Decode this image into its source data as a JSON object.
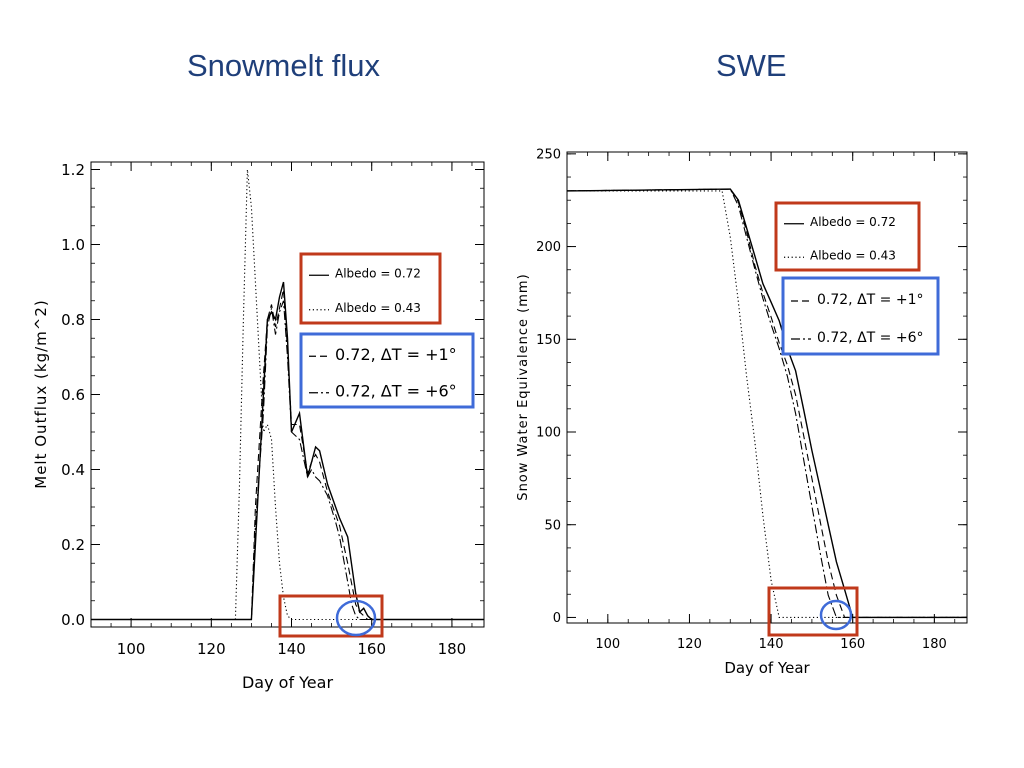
{
  "slide": {
    "left_title": "Snowmelt flux",
    "right_title": "SWE"
  },
  "colors": {
    "title": "#1f3f7a",
    "highlight_red": "#c0391b",
    "highlight_blue": "#3f6bd8",
    "line": "#000000"
  },
  "chart_data": [
    {
      "type": "line",
      "title": "",
      "xlabel": "Day of Year",
      "ylabel": "Melt Outflux (kg/m^2)",
      "xlim": [
        90,
        188
      ],
      "ylim": [
        -0.02,
        1.22
      ],
      "xticks": [
        100,
        120,
        140,
        160,
        180
      ],
      "xtick_labels": [
        "100",
        "120",
        "140",
        "160",
        "180"
      ],
      "yticks": [
        0.0,
        0.2,
        0.4,
        0.6,
        0.8,
        1.0,
        1.2
      ],
      "ytick_labels": [
        "0.0",
        "0.2",
        "0.4",
        "0.6",
        "0.8",
        "1.0",
        "1.2"
      ],
      "grid": false,
      "legend": [
        {
          "label": "Albedo = 0.72",
          "style": "solid",
          "box": "red"
        },
        {
          "label": "Albedo = 0.43",
          "style": "dotted",
          "box": "red"
        },
        {
          "label": "0.72, ΔT = +1°",
          "style": "dashed",
          "box": "blue"
        },
        {
          "label": "0.72, ΔT = +6°",
          "style": "dashdot",
          "box": "blue"
        }
      ],
      "series": [
        {
          "name": "Albedo = 0.72",
          "style": "solid",
          "x": [
            90,
            130,
            131,
            133,
            134,
            135,
            136,
            137,
            138,
            139,
            140,
            142,
            144,
            145,
            146,
            147,
            149,
            151,
            152,
            154,
            156,
            157,
            158,
            159,
            160,
            188
          ],
          "y": [
            0,
            0,
            0.2,
            0.6,
            0.8,
            0.82,
            0.8,
            0.86,
            0.9,
            0.75,
            0.5,
            0.55,
            0.38,
            0.42,
            0.46,
            0.45,
            0.36,
            0.3,
            0.27,
            0.22,
            0.07,
            0.02,
            0.03,
            0.01,
            0,
            0
          ]
        },
        {
          "name": "Albedo = 0.43",
          "style": "dotted",
          "x": [
            90,
            126,
            127,
            128,
            129,
            130,
            131,
            132,
            133,
            134,
            135,
            136,
            137,
            138,
            139,
            140,
            188
          ],
          "y": [
            0,
            0,
            0.35,
            0.8,
            1.2,
            1.1,
            0.9,
            0.7,
            0.5,
            0.52,
            0.48,
            0.3,
            0.15,
            0.06,
            0.01,
            0,
            0
          ]
        },
        {
          "name": "0.72, ΔT = +1°",
          "style": "dashed",
          "x": [
            90,
            130,
            131,
            133,
            134,
            135,
            136,
            137,
            138,
            139,
            140,
            142,
            144,
            145,
            146,
            147,
            149,
            151,
            152,
            154,
            156,
            157,
            158,
            159,
            188
          ],
          "y": [
            0,
            0,
            0.3,
            0.65,
            0.8,
            0.84,
            0.78,
            0.83,
            0.88,
            0.72,
            0.52,
            0.52,
            0.39,
            0.42,
            0.44,
            0.42,
            0.34,
            0.28,
            0.25,
            0.15,
            0.04,
            0.02,
            0.01,
            0,
            0
          ]
        },
        {
          "name": "0.72, ΔT = +6°",
          "style": "dashdot",
          "x": [
            90,
            130,
            131,
            133,
            134,
            135,
            136,
            137,
            138,
            139,
            140,
            142,
            144,
            145,
            146,
            147,
            149,
            151,
            152,
            154,
            155,
            156,
            157,
            188
          ],
          "y": [
            0,
            0,
            0.25,
            0.55,
            0.78,
            0.83,
            0.76,
            0.82,
            0.85,
            0.7,
            0.5,
            0.48,
            0.38,
            0.4,
            0.38,
            0.37,
            0.33,
            0.26,
            0.22,
            0.1,
            0.04,
            0.01,
            0,
            0
          ]
        }
      ]
    },
    {
      "type": "line",
      "title": "",
      "xlabel": "Day of Year",
      "ylabel": "Snow Water Equivalence (mm)",
      "xlim": [
        90,
        188
      ],
      "ylim": [
        -3,
        251
      ],
      "xticks": [
        100,
        120,
        140,
        160,
        180
      ],
      "xtick_labels": [
        "100",
        "120",
        "140",
        "160",
        "180"
      ],
      "yticks": [
        0,
        50,
        100,
        150,
        200,
        250
      ],
      "ytick_labels": [
        "0",
        "50",
        "100",
        "150",
        "200",
        "250"
      ],
      "grid": false,
      "legend": [
        {
          "label": "Albedo = 0.72",
          "style": "solid",
          "box": "red"
        },
        {
          "label": "Albedo = 0.43",
          "style": "dotted",
          "box": "red"
        },
        {
          "label": "0.72, ΔT = +1°",
          "style": "dashed",
          "box": "blue"
        },
        {
          "label": "0.72, ΔT = +6°",
          "style": "dashdot",
          "box": "blue"
        }
      ],
      "series": [
        {
          "name": "Albedo = 0.72",
          "style": "solid",
          "x": [
            90,
            130,
            132,
            134,
            136,
            138,
            140,
            142,
            144,
            146,
            148,
            150,
            152,
            154,
            156,
            158,
            160,
            188
          ],
          "y": [
            230,
            231,
            225,
            210,
            195,
            180,
            170,
            160,
            145,
            133,
            112,
            90,
            70,
            50,
            30,
            15,
            0,
            0
          ]
        },
        {
          "name": "Albedo = 0.43",
          "style": "dotted",
          "x": [
            90,
            128,
            130,
            132,
            134,
            136,
            138,
            140,
            142,
            188
          ],
          "y": [
            230,
            230,
            205,
            170,
            130,
            95,
            55,
            20,
            0,
            0
          ]
        },
        {
          "name": "0.72, ΔT = +1°",
          "style": "dashed",
          "x": [
            90,
            130,
            132,
            134,
            136,
            138,
            140,
            142,
            144,
            146,
            148,
            150,
            152,
            154,
            156,
            158,
            188
          ],
          "y": [
            230,
            231,
            224,
            208,
            190,
            175,
            162,
            148,
            136,
            120,
            98,
            75,
            52,
            30,
            12,
            0,
            0
          ]
        },
        {
          "name": "0.72, ΔT = +6°",
          "style": "dashdot",
          "x": [
            90,
            130,
            132,
            134,
            136,
            138,
            140,
            142,
            144,
            146,
            148,
            150,
            152,
            154,
            156,
            188
          ],
          "y": [
            230,
            231,
            222,
            205,
            188,
            172,
            158,
            145,
            130,
            110,
            85,
            60,
            35,
            12,
            0,
            0
          ]
        }
      ]
    }
  ]
}
